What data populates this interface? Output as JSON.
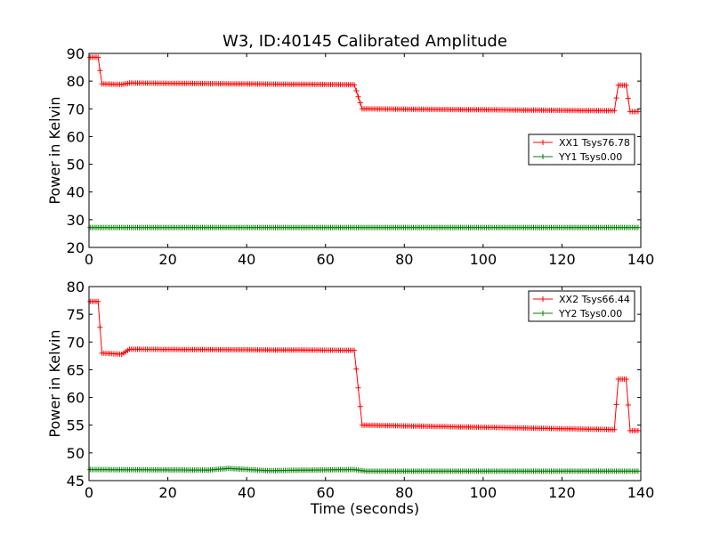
{
  "figure_title": "W3, ID:40145 Calibrated Amplitude",
  "colors": {
    "xx": "#ff0000",
    "yy": "#008000",
    "frame": "#000000",
    "background": "#ffffff"
  },
  "chart_data": [
    {
      "type": "line",
      "title": "W3, ID:40145 Calibrated Amplitude",
      "xlabel": "",
      "ylabel": "Power in Kelvin",
      "xlim": [
        0,
        140
      ],
      "ylim": [
        20,
        90
      ],
      "xticks": [
        0,
        20,
        40,
        60,
        80,
        100,
        120,
        140
      ],
      "yticks": [
        20,
        30,
        40,
        50,
        60,
        70,
        80,
        90
      ],
      "grid": false,
      "legend_position": "center-right",
      "marker": "plus",
      "sample_step": 0.5,
      "x_range": [
        0.3,
        139.3
      ],
      "series": [
        {
          "name": "XX1 Tsys76.78",
          "color": "#ff0000",
          "segments": [
            {
              "x": [
                0.3,
                2.3
              ],
              "y": [
                88.6,
                88.6
              ]
            },
            {
              "x": [
                2.3,
                3.3
              ],
              "y": [
                88.6,
                79.0
              ]
            },
            {
              "x": [
                3.3,
                8.3
              ],
              "y": [
                79.0,
                78.8
              ]
            },
            {
              "x": [
                8.3,
                10.3
              ],
              "y": [
                78.8,
                79.3
              ]
            },
            {
              "x": [
                10.3,
                67.3
              ],
              "y": [
                79.3,
                78.7
              ]
            },
            {
              "x": [
                67.3,
                69.3
              ],
              "y": [
                78.7,
                70.0
              ]
            },
            {
              "x": [
                69.3,
                133.3
              ],
              "y": [
                70.0,
                69.3
              ]
            },
            {
              "x": [
                133.3,
                134.3
              ],
              "y": [
                69.3,
                78.5
              ]
            },
            {
              "x": [
                134.3,
                136.3
              ],
              "y": [
                78.5,
                78.5
              ]
            },
            {
              "x": [
                136.3,
                137.3
              ],
              "y": [
                78.5,
                69.0
              ]
            },
            {
              "x": [
                137.3,
                139.3
              ],
              "y": [
                69.0,
                69.0
              ]
            }
          ]
        },
        {
          "name": "YY1 Tsys0.00",
          "color": "#008000",
          "segments": [
            {
              "x": [
                0.3,
                139.3
              ],
              "y": [
                27.2,
                27.2
              ]
            }
          ]
        }
      ]
    },
    {
      "type": "line",
      "title": "",
      "xlabel": "Time (seconds)",
      "ylabel": "Power in Kelvin",
      "xlim": [
        0,
        140
      ],
      "ylim": [
        45,
        80
      ],
      "xticks": [
        0,
        20,
        40,
        60,
        80,
        100,
        120,
        140
      ],
      "yticks": [
        45,
        50,
        55,
        60,
        65,
        70,
        75,
        80
      ],
      "grid": false,
      "legend_position": "top-right",
      "marker": "plus",
      "sample_step": 0.5,
      "x_range": [
        0.3,
        139.3
      ],
      "series": [
        {
          "name": "XX2 Tsys66.44",
          "color": "#ff0000",
          "segments": [
            {
              "x": [
                0.3,
                2.3
              ],
              "y": [
                77.3,
                77.3
              ]
            },
            {
              "x": [
                2.3,
                3.3
              ],
              "y": [
                77.3,
                68.0
              ]
            },
            {
              "x": [
                3.3,
                8.3
              ],
              "y": [
                68.0,
                67.8
              ]
            },
            {
              "x": [
                8.3,
                10.3
              ],
              "y": [
                67.8,
                68.7
              ]
            },
            {
              "x": [
                10.3,
                67.3
              ],
              "y": [
                68.7,
                68.5
              ]
            },
            {
              "x": [
                67.3,
                69.3
              ],
              "y": [
                68.5,
                55.0
              ]
            },
            {
              "x": [
                69.3,
                133.3
              ],
              "y": [
                55.0,
                54.2
              ]
            },
            {
              "x": [
                133.3,
                134.3
              ],
              "y": [
                54.2,
                63.3
              ]
            },
            {
              "x": [
                134.3,
                136.3
              ],
              "y": [
                63.3,
                63.3
              ]
            },
            {
              "x": [
                136.3,
                137.3
              ],
              "y": [
                63.3,
                54.0
              ]
            },
            {
              "x": [
                137.3,
                139.3
              ],
              "y": [
                54.0,
                54.0
              ]
            }
          ]
        },
        {
          "name": "YY2 Tsys0.00",
          "color": "#008000",
          "segments": [
            {
              "x": [
                0.3,
                30.3
              ],
              "y": [
                47.0,
                46.9
              ]
            },
            {
              "x": [
                30.3,
                35.3
              ],
              "y": [
                46.9,
                47.2
              ]
            },
            {
              "x": [
                35.3,
                45.3
              ],
              "y": [
                47.2,
                46.8
              ]
            },
            {
              "x": [
                45.3,
                67.3
              ],
              "y": [
                46.8,
                47.0
              ]
            },
            {
              "x": [
                67.3,
                70.3
              ],
              "y": [
                47.0,
                46.7
              ]
            },
            {
              "x": [
                70.3,
                139.3
              ],
              "y": [
                46.7,
                46.7
              ]
            }
          ]
        }
      ]
    }
  ]
}
